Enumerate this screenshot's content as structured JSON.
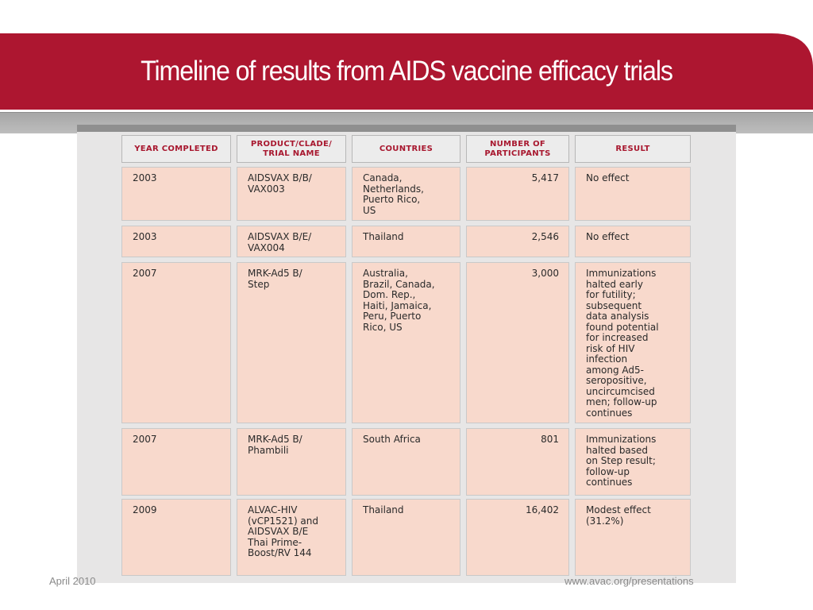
{
  "slide": {
    "title": "Timeline of results from AIDS vaccine efficacy trials",
    "colors": {
      "title_bar": "#ad1630",
      "header_text": "#a8182f",
      "cell_fill": "#f8d9cc"
    }
  },
  "table": {
    "headers": [
      "Year completed",
      "Product/Clade/\nTrial name",
      "Countries",
      "Number of\nparticipants",
      "Result"
    ],
    "rows": [
      [
        "2003",
        "AIDSVAX B/B/\nVAX003",
        "Canada,\nNetherlands,\nPuerto Rico,\nUS",
        "5,417",
        "No effect"
      ],
      [
        "2003",
        "AIDSVAX B/E/\nVAX004",
        "Thailand",
        "2,546",
        "No effect"
      ],
      [
        "2007",
        "MRK-Ad5 B/\nStep",
        "Australia,\nBrazil, Canada,\nDom. Rep.,\nHaiti, Jamaica,\nPeru, Puerto\nRico, US",
        "3,000",
        "Immunizations\nhalted early\nfor futility;\nsubsequent\ndata analysis\nfound potential\nfor increased\nrisk of HIV\ninfection\namong Ad5-\nseropositive,\nuncircumcised\nmen; follow-up\ncontinues"
      ],
      [
        "2007",
        "MRK-Ad5 B/\nPhambili",
        "South Africa",
        "801",
        "Immunizations\nhalted based\non Step result;\nfollow-up\ncontinues"
      ],
      [
        "2009",
        "ALVAC-HIV\n(vCP1521) and\nAIDSVAX B/E\nThai Prime-\nBoost/RV 144",
        "Thailand",
        "16,402",
        "Modest effect\n(31.2%)"
      ]
    ]
  },
  "footer": {
    "date": "April 2010",
    "url": "www.avac.org/presentations"
  }
}
